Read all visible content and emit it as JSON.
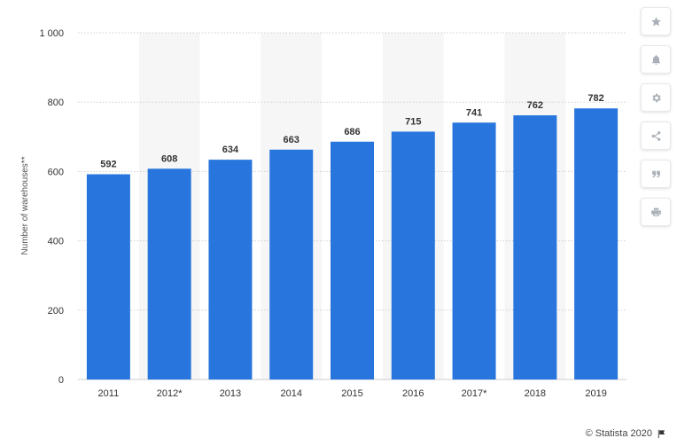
{
  "chart_data": {
    "type": "bar",
    "categories": [
      "2011",
      "2012*",
      "2013",
      "2014",
      "2015",
      "2016",
      "2017*",
      "2018",
      "2019"
    ],
    "values": [
      592,
      608,
      634,
      663,
      686,
      715,
      741,
      762,
      782
    ],
    "ylabel": "Number of warehouses**",
    "ylim": [
      0,
      1000
    ],
    "yticks": [
      0,
      200,
      400,
      600,
      800,
      1000
    ],
    "ytick_labels": [
      "0",
      "200",
      "400",
      "600",
      "800",
      "1 000"
    ],
    "bar_color": "#2876dd",
    "band_color": "#f6f6f7",
    "grid": true
  },
  "toolbar": {
    "buttons": [
      "star-icon",
      "bell-icon",
      "gear-icon",
      "share-icon",
      "quote-icon",
      "print-icon"
    ]
  },
  "credit": {
    "text": "© Statista 2020"
  }
}
